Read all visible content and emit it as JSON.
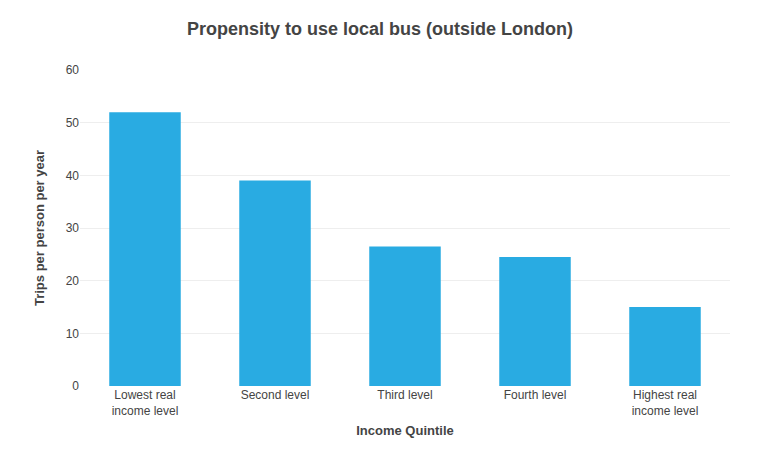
{
  "chart_data": {
    "type": "bar",
    "title": "Propensity to use local bus (outside London)",
    "categories": [
      "Lowest real\nincome level",
      "Second level",
      "Third level",
      "Fourth level",
      "Highest real\nincome level"
    ],
    "values": [
      52,
      39,
      26.5,
      24.5,
      15
    ],
    "color": "#29ABE2",
    "xlabel": "Income Quintile",
    "ylabel": "Trips per person per year",
    "ylim": [
      0,
      60
    ],
    "yticks": [
      0,
      10,
      20,
      30,
      40,
      50,
      60
    ],
    "grid": true
  }
}
